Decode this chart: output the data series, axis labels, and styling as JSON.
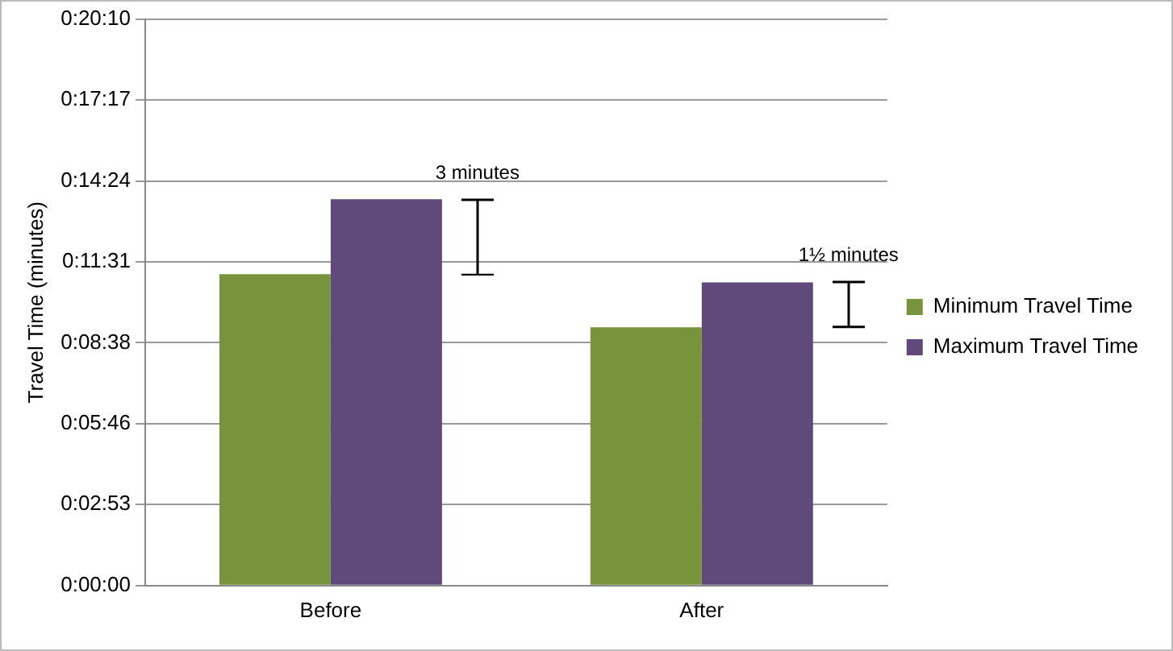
{
  "chart_data": {
    "type": "bar",
    "ylabel": "Travel Time (minutes)",
    "categories": [
      "Before",
      "After"
    ],
    "series": [
      {
        "name": "Minimum Travel Time",
        "color": "#77933c",
        "values": [
          11.08,
          9.19
        ]
      },
      {
        "name": "Maximum Travel Time",
        "color": "#604a7b",
        "values": [
          13.75,
          10.79
        ]
      }
    ],
    "ylim": [
      0,
      20.16
    ],
    "yticks": [
      {
        "value": 0,
        "label": "0:00:00"
      },
      {
        "value": 2.88,
        "label": "0:02:53"
      },
      {
        "value": 5.76,
        "label": "0:05:46"
      },
      {
        "value": 8.64,
        "label": "0:08:38"
      },
      {
        "value": 11.52,
        "label": "0:11:31"
      },
      {
        "value": 14.4,
        "label": "0:14:24"
      },
      {
        "value": 17.28,
        "label": "0:17:17"
      },
      {
        "value": 20.16,
        "label": "0:20:10"
      }
    ],
    "grid": "y",
    "legend": "right",
    "annotations": [
      "3 minutes",
      "1½ minutes"
    ]
  }
}
